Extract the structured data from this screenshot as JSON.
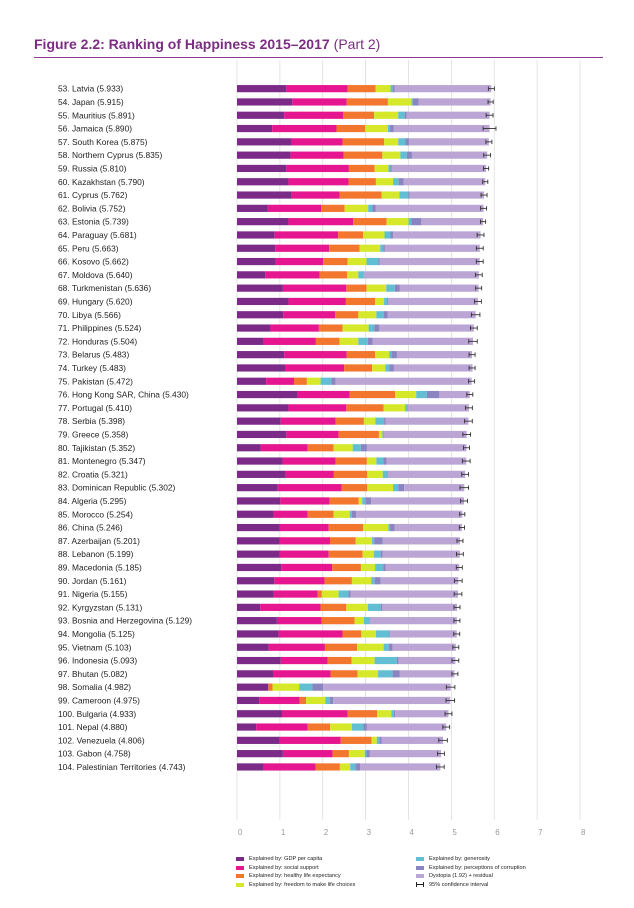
{
  "figure": {
    "title": "Figure 2.2: Ranking of Happiness 2015–2017",
    "part": "(Part 2)"
  },
  "colors": {
    "gdp": "#7b2a88",
    "social": "#e5168f",
    "health": "#f2762e",
    "freedom": "#d6e82a",
    "generosity": "#62bfd3",
    "corruption": "#8a85c0",
    "dystopia": "#bba5d4",
    "ci": "#333333",
    "grid": "#dddddd"
  },
  "chart_data": {
    "type": "bar",
    "orientation": "horizontal",
    "stacked": true,
    "xlim": [
      0,
      8
    ],
    "x_ticks": [
      "0",
      "1",
      "2",
      "3",
      "4",
      "5",
      "6",
      "7",
      "8"
    ],
    "grid": true,
    "legend_position": "bottom",
    "series": [
      {
        "key": "gdp",
        "name": "Explained by: GDP per capita"
      },
      {
        "key": "social",
        "name": "Explained by: social support"
      },
      {
        "key": "health",
        "name": "Explained by: healthy life expectancy"
      },
      {
        "key": "freedom",
        "name": "Explained by: freedom to make life choices"
      },
      {
        "key": "generosity",
        "name": "Explained by: generosity"
      },
      {
        "key": "corruption",
        "name": "Explained by: perceptions of corruption"
      },
      {
        "key": "dystopia",
        "name": "Dystopia (1.92) + residual"
      }
    ],
    "ci_label": "95% confidence interval",
    "rows": [
      {
        "label": "53.  Latvia (5.933)",
        "score": 5.933,
        "parts": [
          1.15,
          1.43,
          0.65,
          0.35,
          0.05,
          0.05,
          2.253
        ],
        "ci": 0.07
      },
      {
        "label": "54.  Japan (5.915)",
        "score": 5.915,
        "parts": [
          1.29,
          1.27,
          0.96,
          0.55,
          0.03,
          0.14,
          1.675
        ],
        "ci": 0.06
      },
      {
        "label": "55.  Mauritius (5.891)",
        "score": 5.891,
        "parts": [
          1.1,
          1.38,
          0.72,
          0.56,
          0.15,
          0.05,
          1.931
        ],
        "ci": 0.08
      },
      {
        "label": "56.  Jamaica (5.890)",
        "score": 5.89,
        "parts": [
          0.82,
          1.5,
          0.67,
          0.53,
          0.05,
          0.08,
          2.24
        ],
        "ci": 0.15
      },
      {
        "label": "57.  South Korea (5.875)",
        "score": 5.875,
        "parts": [
          1.27,
          1.19,
          0.97,
          0.33,
          0.17,
          0.08,
          1.865
        ],
        "ci": 0.07
      },
      {
        "label": "58.  Northern Cyprus (5.835)",
        "score": 5.835,
        "parts": [
          1.25,
          1.24,
          0.9,
          0.42,
          0.15,
          0.12,
          1.755
        ],
        "ci": 0.08
      },
      {
        "label": "59.  Russia (5.810)",
        "score": 5.81,
        "parts": [
          1.15,
          1.46,
          0.6,
          0.32,
          0.05,
          0.03,
          2.2
        ],
        "ci": 0.06
      },
      {
        "label": "60.  Kazakhstan (5.790)",
        "score": 5.79,
        "parts": [
          1.2,
          1.4,
          0.64,
          0.4,
          0.13,
          0.12,
          1.9
        ],
        "ci": 0.06
      },
      {
        "label": "61.  Cyprus (5.762)",
        "score": 5.762,
        "parts": [
          1.26,
          1.13,
          0.98,
          0.42,
          0.21,
          0.03,
          1.732
        ],
        "ci": 0.07
      },
      {
        "label": "62.  Bolivia (5.752)",
        "score": 5.752,
        "parts": [
          0.72,
          1.24,
          0.55,
          0.55,
          0.1,
          0.07,
          2.522
        ],
        "ci": 0.07
      },
      {
        "label": "63.  Estonia (5.739)",
        "score": 5.739,
        "parts": [
          1.2,
          1.51,
          0.78,
          0.51,
          0.07,
          0.23,
          1.439
        ],
        "ci": 0.06
      },
      {
        "label": "64.  Paraguay (5.681)",
        "score": 5.681,
        "parts": [
          0.88,
          1.48,
          0.58,
          0.5,
          0.14,
          0.06,
          2.041
        ],
        "ci": 0.08
      },
      {
        "label": "65.  Peru (5.663)",
        "score": 5.663,
        "parts": [
          0.89,
          1.26,
          0.71,
          0.48,
          0.07,
          0.04,
          2.213
        ],
        "ci": 0.08
      },
      {
        "label": "66.  Kosovo (5.662)",
        "score": 5.662,
        "parts": [
          0.9,
          1.11,
          0.57,
          0.44,
          0.28,
          0.03,
          2.332
        ],
        "ci": 0.08
      },
      {
        "label": "67.  Moldova (5.640)",
        "score": 5.64,
        "parts": [
          0.66,
          1.27,
          0.64,
          0.26,
          0.13,
          0.01,
          2.67
        ],
        "ci": 0.08
      },
      {
        "label": "68.  Turkmenistan (5.636)",
        "score": 5.636,
        "parts": [
          1.07,
          1.48,
          0.47,
          0.46,
          0.2,
          0.11,
          1.846
        ],
        "ci": 0.07
      },
      {
        "label": "69.  Hungary (5.620)",
        "score": 5.62,
        "parts": [
          1.2,
          1.34,
          0.68,
          0.21,
          0.08,
          0.02,
          2.09
        ],
        "ci": 0.08
      },
      {
        "label": "70.  Libya (5.566)",
        "score": 5.566,
        "parts": [
          1.08,
          1.21,
          0.54,
          0.42,
          0.17,
          0.09,
          2.056
        ],
        "ci": 0.1
      },
      {
        "label": "71.  Philippines (5.524)",
        "score": 5.524,
        "parts": [
          0.77,
          1.14,
          0.55,
          0.61,
          0.13,
          0.12,
          2.204
        ],
        "ci": 0.08
      },
      {
        "label": "72.  Honduras (5.504)",
        "score": 5.504,
        "parts": [
          0.62,
          1.22,
          0.55,
          0.44,
          0.22,
          0.11,
          2.344
        ],
        "ci": 0.1
      },
      {
        "label": "73.  Belarus (5.483)",
        "score": 5.483,
        "parts": [
          1.1,
          1.46,
          0.66,
          0.33,
          0.05,
          0.13,
          1.753
        ],
        "ci": 0.07
      },
      {
        "label": "74.  Turkey (5.483)",
        "score": 5.483,
        "parts": [
          1.12,
          1.38,
          0.65,
          0.31,
          0.09,
          0.11,
          1.833
        ],
        "ci": 0.07
      },
      {
        "label": "75.  Pakistan (5.472)",
        "score": 5.472,
        "parts": [
          0.68,
          0.65,
          0.3,
          0.32,
          0.25,
          0.1,
          3.172
        ],
        "ci": 0.07
      },
      {
        "label": "76.  Hong Kong SAR, China (5.430)",
        "score": 5.43,
        "parts": [
          1.41,
          1.22,
          1.06,
          0.49,
          0.25,
          0.29,
          0.71
        ],
        "ci": 0.07
      },
      {
        "label": "77.  Portugal (5.410)",
        "score": 5.41,
        "parts": [
          1.2,
          1.35,
          0.87,
          0.5,
          0.04,
          0.02,
          1.43
        ],
        "ci": 0.08
      },
      {
        "label": "78.  Serbia (5.398)",
        "score": 5.398,
        "parts": [
          1.02,
          1.28,
          0.66,
          0.27,
          0.2,
          0.04,
          1.928
        ],
        "ci": 0.09
      },
      {
        "label": "79.  Greece (5.358)",
        "score": 5.358,
        "parts": [
          1.15,
          1.22,
          0.94,
          0.08,
          0.01,
          0.02,
          1.938
        ],
        "ci": 0.09
      },
      {
        "label": "80.  Tajikistan (5.352)",
        "score": 5.352,
        "parts": [
          0.55,
          1.1,
          0.6,
          0.45,
          0.19,
          0.14,
          2.322
        ],
        "ci": 0.07
      },
      {
        "label": "81.  Montenegro (5.347)",
        "score": 5.347,
        "parts": [
          1.06,
          1.24,
          0.73,
          0.22,
          0.16,
          0.08,
          1.857
        ],
        "ci": 0.09
      },
      {
        "label": "82.  Croatia (5.321)",
        "score": 5.321,
        "parts": [
          1.12,
          1.14,
          0.78,
          0.36,
          0.11,
          0.01,
          1.801
        ],
        "ci": 0.08
      },
      {
        "label": "83.  Dominican Republic (5.302)",
        "score": 5.302,
        "parts": [
          0.95,
          1.49,
          0.6,
          0.6,
          0.12,
          0.14,
          1.402
        ],
        "ci": 0.1
      },
      {
        "label": "84.  Algeria (5.295)",
        "score": 5.295,
        "parts": [
          1.01,
          1.15,
          0.68,
          0.08,
          0.08,
          0.13,
          2.165
        ],
        "ci": 0.08
      },
      {
        "label": "85.  Morocco (5.254)",
        "score": 5.254,
        "parts": [
          0.85,
          0.8,
          0.6,
          0.38,
          0.05,
          0.1,
          2.474
        ],
        "ci": 0.06
      },
      {
        "label": "86.  China (5.246)",
        "score": 5.246,
        "parts": [
          1.0,
          1.14,
          0.8,
          0.59,
          0.04,
          0.11,
          1.566
        ],
        "ci": 0.06
      },
      {
        "label": "87.  Azerbaijan (5.201)",
        "score": 5.201,
        "parts": [
          1.0,
          1.17,
          0.6,
          0.38,
          0.05,
          0.2,
          1.801
        ],
        "ci": 0.07
      },
      {
        "label": "88.  Lebanon (5.199)",
        "score": 5.199,
        "parts": [
          1.0,
          1.14,
          0.79,
          0.26,
          0.16,
          0.05,
          1.799
        ],
        "ci": 0.08
      },
      {
        "label": "89.  Macedonia (5.185)",
        "score": 5.185,
        "parts": [
          1.03,
          1.19,
          0.67,
          0.33,
          0.19,
          0.06,
          1.715
        ],
        "ci": 0.07
      },
      {
        "label": "90.  Jordan (5.161)",
        "score": 5.161,
        "parts": [
          0.87,
          1.17,
          0.64,
          0.45,
          0.08,
          0.14,
          1.811
        ],
        "ci": 0.09
      },
      {
        "label": "91.  Nigeria (5.155)",
        "score": 5.155,
        "parts": [
          0.86,
          1.02,
          0.1,
          0.39,
          0.23,
          0.05,
          2.505
        ],
        "ci": 0.09
      },
      {
        "label": "92.  Kyrgyzstan (5.131)",
        "score": 5.131,
        "parts": [
          0.54,
          1.41,
          0.6,
          0.5,
          0.3,
          0.04,
          1.741
        ],
        "ci": 0.07
      },
      {
        "label": "93.  Bosnia and Herzegovina (5.129)",
        "score": 5.129,
        "parts": [
          0.93,
          1.04,
          0.77,
          0.22,
          0.13,
          0.01,
          2.029
        ],
        "ci": 0.07
      },
      {
        "label": "94.  Mongolia (5.125)",
        "score": 5.125,
        "parts": [
          0.97,
          1.49,
          0.44,
          0.34,
          0.31,
          0.02,
          1.555
        ],
        "ci": 0.07
      },
      {
        "label": "95.  Vietnam (5.103)",
        "score": 5.103,
        "parts": [
          0.74,
          1.31,
          0.75,
          0.62,
          0.12,
          0.09,
          1.473
        ],
        "ci": 0.07
      },
      {
        "label": "96.  Indonesia (5.093)",
        "score": 5.093,
        "parts": [
          1.02,
          1.09,
          0.56,
          0.54,
          0.52,
          0.04,
          1.323
        ],
        "ci": 0.08
      },
      {
        "label": "97.  Bhutan (5.082)",
        "score": 5.082,
        "parts": [
          0.84,
          1.34,
          0.63,
          0.48,
          0.34,
          0.16,
          1.282
        ],
        "ci": 0.07
      },
      {
        "label": "98.  Somalia (4.982)",
        "score": 4.982,
        "parts": [
          0.73,
          0.0,
          0.1,
          0.62,
          0.31,
          0.25,
          2.972
        ],
        "ci": 0.1
      },
      {
        "label": "99.  Cameroon (4.975)",
        "score": 4.975,
        "parts": [
          0.52,
          0.94,
          0.15,
          0.45,
          0.11,
          0.07,
          2.735
        ],
        "ci": 0.1
      },
      {
        "label": "100. Bulgaria (4.933)",
        "score": 4.933,
        "parts": [
          1.05,
          1.53,
          0.69,
          0.33,
          0.06,
          0.03,
          1.243
        ],
        "ci": 0.08
      },
      {
        "label": "101.  Nepal (4.880)",
        "score": 4.88,
        "parts": [
          0.45,
          1.2,
          0.52,
          0.51,
          0.27,
          0.08,
          1.85
        ],
        "ci": 0.08
      },
      {
        "label": "102. Venezuela (4.806)",
        "score": 4.806,
        "parts": [
          0.99,
          1.43,
          0.72,
          0.12,
          0.06,
          0.05,
          1.436
        ],
        "ci": 0.1
      },
      {
        "label": "103. Gabon (4.758)",
        "score": 4.758,
        "parts": [
          1.07,
          1.16,
          0.38,
          0.37,
          0.04,
          0.08,
          1.658
        ],
        "ci": 0.08
      },
      {
        "label": "104. Palestinian Territories (4.743)",
        "score": 4.743,
        "parts": [
          0.62,
          1.21,
          0.57,
          0.24,
          0.12,
          0.11,
          1.873
        ],
        "ci": 0.09
      }
    ]
  }
}
